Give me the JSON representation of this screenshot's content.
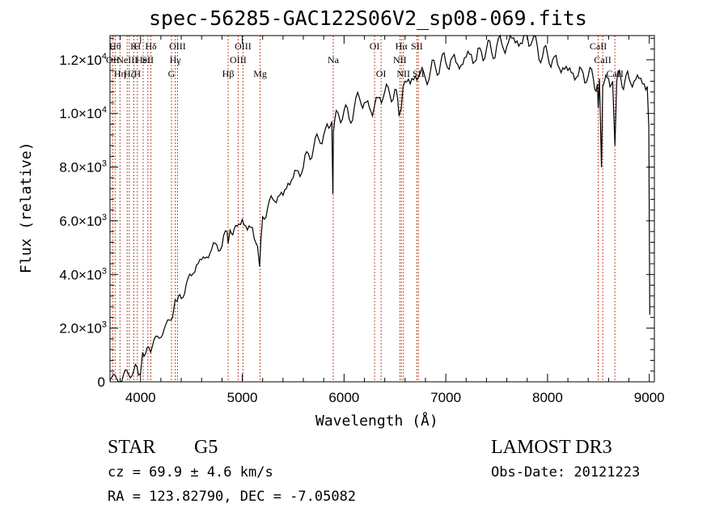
{
  "chart_data": {
    "type": "line",
    "title": "spec-56285-GAC122S06V2_sp08-069.fits",
    "xlabel": "Wavelength (Å)",
    "ylabel": "Flux (relative)",
    "xlim": [
      3700,
      9050
    ],
    "ylim": [
      0,
      12900
    ],
    "xticks": [
      {
        "value": 4000,
        "label": "4000"
      },
      {
        "value": 5000,
        "label": "5000"
      },
      {
        "value": 6000,
        "label": "6000"
      },
      {
        "value": 7000,
        "label": "7000"
      },
      {
        "value": 8000,
        "label": "8000"
      },
      {
        "value": 9000,
        "label": "9000"
      }
    ],
    "yticks": [
      {
        "value": 0,
        "mant": "0",
        "exp": ""
      },
      {
        "value": 2000,
        "mant": "2.0×10",
        "exp": "3"
      },
      {
        "value": 4000,
        "mant": "4.0×10",
        "exp": "3"
      },
      {
        "value": 6000,
        "mant": "6.0×10",
        "exp": "3"
      },
      {
        "value": 8000,
        "mant": "8.0×10",
        "exp": "3"
      },
      {
        "value": 10000,
        "mant": "1.0×10",
        "exp": "4"
      },
      {
        "value": 12000,
        "mant": "1.2×10",
        "exp": "4"
      }
    ],
    "series": [
      {
        "name": "spectrum",
        "x": [
          3700,
          3750,
          3800,
          3850,
          3900,
          3950,
          3980,
          4000,
          4020,
          4050,
          4080,
          4100,
          4150,
          4200,
          4250,
          4300,
          4330,
          4340,
          4360,
          4400,
          4450,
          4500,
          4550,
          4600,
          4650,
          4700,
          4750,
          4800,
          4850,
          4861,
          4880,
          4920,
          4950,
          5000,
          5050,
          5100,
          5150,
          5170,
          5183,
          5200,
          5250,
          5300,
          5350,
          5400,
          5450,
          5500,
          5550,
          5600,
          5650,
          5700,
          5750,
          5800,
          5850,
          5880,
          5890,
          5896,
          5910,
          5950,
          6000,
          6050,
          6100,
          6150,
          6200,
          6250,
          6280,
          6300,
          6350,
          6400,
          6450,
          6500,
          6540,
          6563,
          6580,
          6600,
          6650,
          6700,
          6750,
          6800,
          6850,
          6900,
          6950,
          7000,
          7050,
          7100,
          7150,
          7200,
          7250,
          7300,
          7350,
          7400,
          7450,
          7500,
          7550,
          7600,
          7650,
          7700,
          7750,
          7800,
          7850,
          7900,
          7950,
          8000,
          8050,
          8100,
          8150,
          8200,
          8250,
          8300,
          8350,
          8400,
          8450,
          8490,
          8498,
          8510,
          8530,
          8542,
          8560,
          8600,
          8640,
          8662,
          8680,
          8720,
          8760,
          8800,
          8850,
          8900,
          8950,
          8980,
          8995,
          9005
        ],
        "y": [
          50,
          250,
          -150,
          450,
          150,
          650,
          250,
          300,
          1100,
          1050,
          1300,
          1100,
          1700,
          1650,
          2150,
          2300,
          2800,
          3050,
          3000,
          3100,
          3650,
          3950,
          4350,
          4550,
          4650,
          4950,
          5100,
          5050,
          5600,
          5150,
          5650,
          5700,
          5800,
          6050,
          5650,
          5750,
          5050,
          4300,
          5300,
          6150,
          6500,
          6800,
          6900,
          6950,
          7400,
          7600,
          7850,
          8000,
          8500,
          8700,
          9050,
          9200,
          9450,
          9700,
          7000,
          9300,
          9800,
          9900,
          10100,
          9800,
          10200,
          10600,
          10400,
          10200,
          9900,
          10300,
          10600,
          10800,
          10700,
          10900,
          9900,
          10200,
          11000,
          11200,
          11100,
          11400,
          11500,
          11300,
          11600,
          11700,
          11900,
          11900,
          12000,
          11900,
          11800,
          12100,
          12200,
          12000,
          12300,
          12400,
          12300,
          12500,
          12600,
          12500,
          12800,
          12700,
          12600,
          12900,
          12700,
          12500,
          12100,
          12200,
          12000,
          11800,
          11700,
          11600,
          11500,
          11400,
          11500,
          11400,
          11300,
          11100,
          10200,
          11300,
          8000,
          11000,
          11200,
          11300,
          11200,
          8800,
          11200,
          11300,
          11200,
          11300,
          11200,
          11300,
          11100,
          11000,
          9500,
          2500
        ]
      }
    ],
    "lines": [
      {
        "x": 3727,
        "labels": [
          {
            "text": "OII",
            "row": 2
          }
        ]
      },
      {
        "x": 3750,
        "labels": [
          {
            "text": "Hθ",
            "row": 1
          }
        ]
      },
      {
        "x": 3798,
        "labels": [
          {
            "text": "Hη",
            "row": 3
          }
        ]
      },
      {
        "x": 3869,
        "labels": [
          {
            "text": "NeIII",
            "row": 2
          }
        ]
      },
      {
        "x": 3889,
        "labels": [
          {
            "text": "Hζ",
            "row": 3
          }
        ]
      },
      {
        "x": 3934,
        "labels": [
          {
            "text": "K",
            "row": 1
          }
        ]
      },
      {
        "x": 3969,
        "labels": [
          {
            "text": "H",
            "row": 1
          },
          {
            "text": "H",
            "row": 3
          }
        ]
      },
      {
        "x": 4026,
        "labels": [
          {
            "text": "HeI",
            "row": 2
          }
        ]
      },
      {
        "x": 4072,
        "labels": [
          {
            "text": "SII",
            "row": 2
          }
        ]
      },
      {
        "x": 4102,
        "labels": [
          {
            "text": "Hδ",
            "row": 1
          }
        ]
      },
      {
        "x": 4304,
        "labels": [
          {
            "text": "G",
            "row": 3
          }
        ]
      },
      {
        "x": 4341,
        "labels": [
          {
            "text": "Hγ",
            "row": 2
          }
        ]
      },
      {
        "x": 4363,
        "labels": [
          {
            "text": "OIII",
            "row": 1
          }
        ]
      },
      {
        "x": 4861,
        "labels": [
          {
            "text": "Hβ",
            "row": 3
          }
        ]
      },
      {
        "x": 4959,
        "labels": [
          {
            "text": "OIII",
            "row": 2
          }
        ]
      },
      {
        "x": 5007,
        "labels": [
          {
            "text": "OIII",
            "row": 1
          }
        ]
      },
      {
        "x": 5175,
        "labels": [
          {
            "text": "Mg",
            "row": 3
          }
        ]
      },
      {
        "x": 5894,
        "labels": [
          {
            "text": "Na",
            "row": 2
          }
        ]
      },
      {
        "x": 6300,
        "labels": [
          {
            "text": "OI",
            "row": 1
          }
        ]
      },
      {
        "x": 6364,
        "labels": [
          {
            "text": "OI",
            "row": 3
          }
        ]
      },
      {
        "x": 6548,
        "labels": [
          {
            "text": "NII",
            "row": 2
          }
        ]
      },
      {
        "x": 6563,
        "labels": [
          {
            "text": "Hα",
            "row": 1
          }
        ]
      },
      {
        "x": 6583,
        "labels": [
          {
            "text": "NII",
            "row": 3
          }
        ]
      },
      {
        "x": 6716,
        "labels": [
          {
            "text": "SII",
            "row": 1
          }
        ]
      },
      {
        "x": 6731,
        "labels": [
          {
            "text": "SII",
            "row": 3
          }
        ]
      },
      {
        "x": 8498,
        "labels": [
          {
            "text": "CaII",
            "row": 1
          }
        ]
      },
      {
        "x": 8542,
        "labels": [
          {
            "text": "CaII",
            "row": 2
          }
        ]
      },
      {
        "x": 8662,
        "labels": [
          {
            "text": "CaII",
            "row": 3
          }
        ]
      }
    ],
    "line_color": "#c04a2a"
  },
  "info": {
    "object_class": "STAR",
    "subclass": "G5",
    "survey": "LAMOST DR3",
    "redshift": "cz = 69.9 ± 4.6 km/s",
    "obs_date": "Obs-Date: 20121223",
    "coords": "RA = 123.82790, DEC =  -7.05082"
  }
}
